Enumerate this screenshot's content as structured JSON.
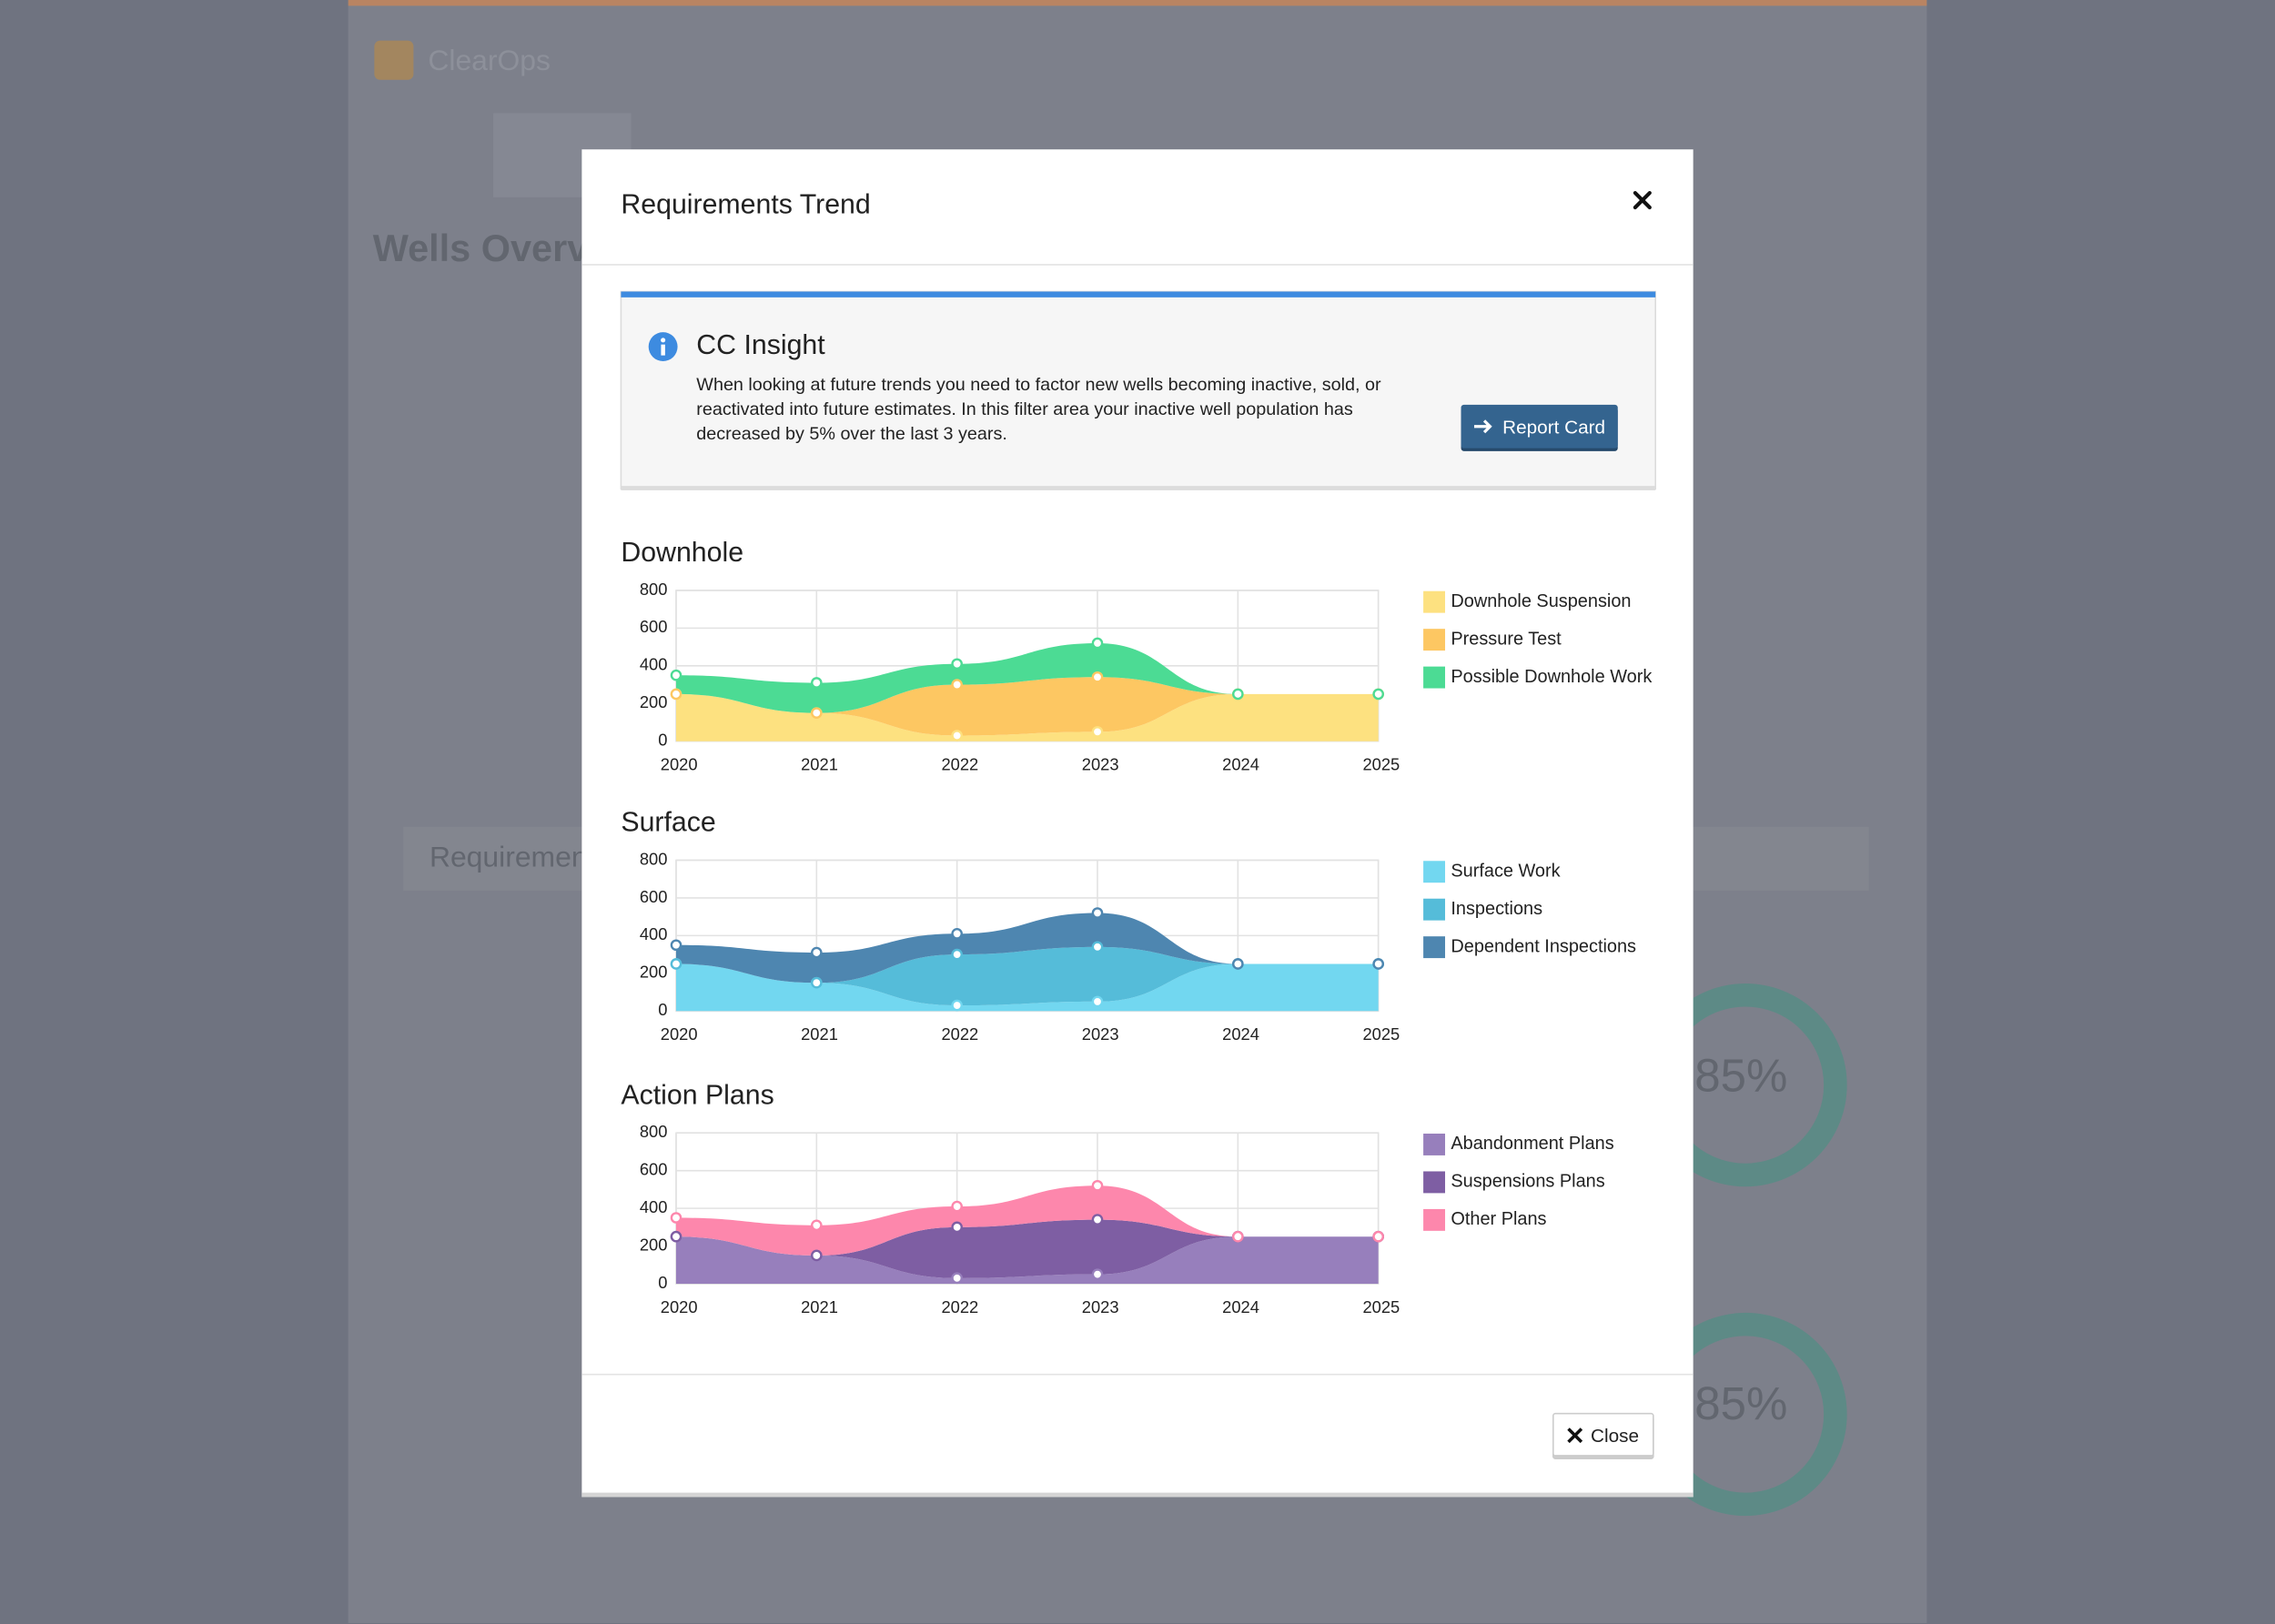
{
  "background": {
    "brand": "ClearOps",
    "page_title": "Wells Overview",
    "section": "Requirements",
    "donuts": [
      "85%",
      "85%"
    ]
  },
  "header": {
    "title": "Requirements Trend"
  },
  "insight": {
    "title": "CC Insight",
    "text": "When looking at future trends you need to factor new wells becoming inactive, sold, or reactivated into future estimates. In this filter area your inactive well population has decreased by 5% over the last 3 years.",
    "button": "Report Card"
  },
  "chart_data": [
    {
      "type": "area",
      "title": "Downhole",
      "stacked": true,
      "grid": true,
      "categories": [
        "2020",
        "2021",
        "2022",
        "2023",
        "2024",
        "2025"
      ],
      "ylim": [
        0,
        800
      ],
      "yticks": [
        0,
        200,
        400,
        600,
        800
      ],
      "series": [
        {
          "name": "Downhole Suspension",
          "color": "#fde180",
          "values": [
            250,
            150,
            30,
            50,
            250,
            250
          ]
        },
        {
          "name": "Pressure Test",
          "color": "#fdc762",
          "values": [
            0,
            0,
            270,
            290,
            0,
            0
          ]
        },
        {
          "name": "Possible Downhole Work",
          "color": "#4cdb94",
          "values": [
            100,
            160,
            110,
            180,
            0,
            0
          ]
        }
      ]
    },
    {
      "type": "area",
      "title": "Surface",
      "stacked": true,
      "grid": true,
      "categories": [
        "2020",
        "2021",
        "2022",
        "2023",
        "2024",
        "2025"
      ],
      "ylim": [
        0,
        800
      ],
      "yticks": [
        0,
        200,
        400,
        600,
        800
      ],
      "series": [
        {
          "name": "Surface Work",
          "color": "#72d7f0",
          "values": [
            250,
            150,
            30,
            50,
            250,
            250
          ]
        },
        {
          "name": "Inspections",
          "color": "#55bcd9",
          "values": [
            0,
            0,
            270,
            290,
            0,
            0
          ]
        },
        {
          "name": "Dependent Inspections",
          "color": "#4e86b0",
          "values": [
            100,
            160,
            110,
            180,
            0,
            0
          ]
        }
      ]
    },
    {
      "type": "area",
      "title": "Action Plans",
      "stacked": true,
      "grid": true,
      "categories": [
        "2020",
        "2021",
        "2022",
        "2023",
        "2024",
        "2025"
      ],
      "ylim": [
        0,
        800
      ],
      "yticks": [
        0,
        200,
        400,
        600,
        800
      ],
      "series": [
        {
          "name": "Abandonment Plans",
          "color": "#977fbc",
          "values": [
            250,
            150,
            30,
            50,
            250,
            250
          ]
        },
        {
          "name": "Suspensions Plans",
          "color": "#7e5ea3",
          "values": [
            0,
            0,
            270,
            290,
            0,
            0
          ]
        },
        {
          "name": "Other Plans",
          "color": "#fd87ac",
          "values": [
            100,
            160,
            110,
            180,
            0,
            0
          ]
        }
      ]
    }
  ],
  "footer": {
    "close": "Close"
  }
}
